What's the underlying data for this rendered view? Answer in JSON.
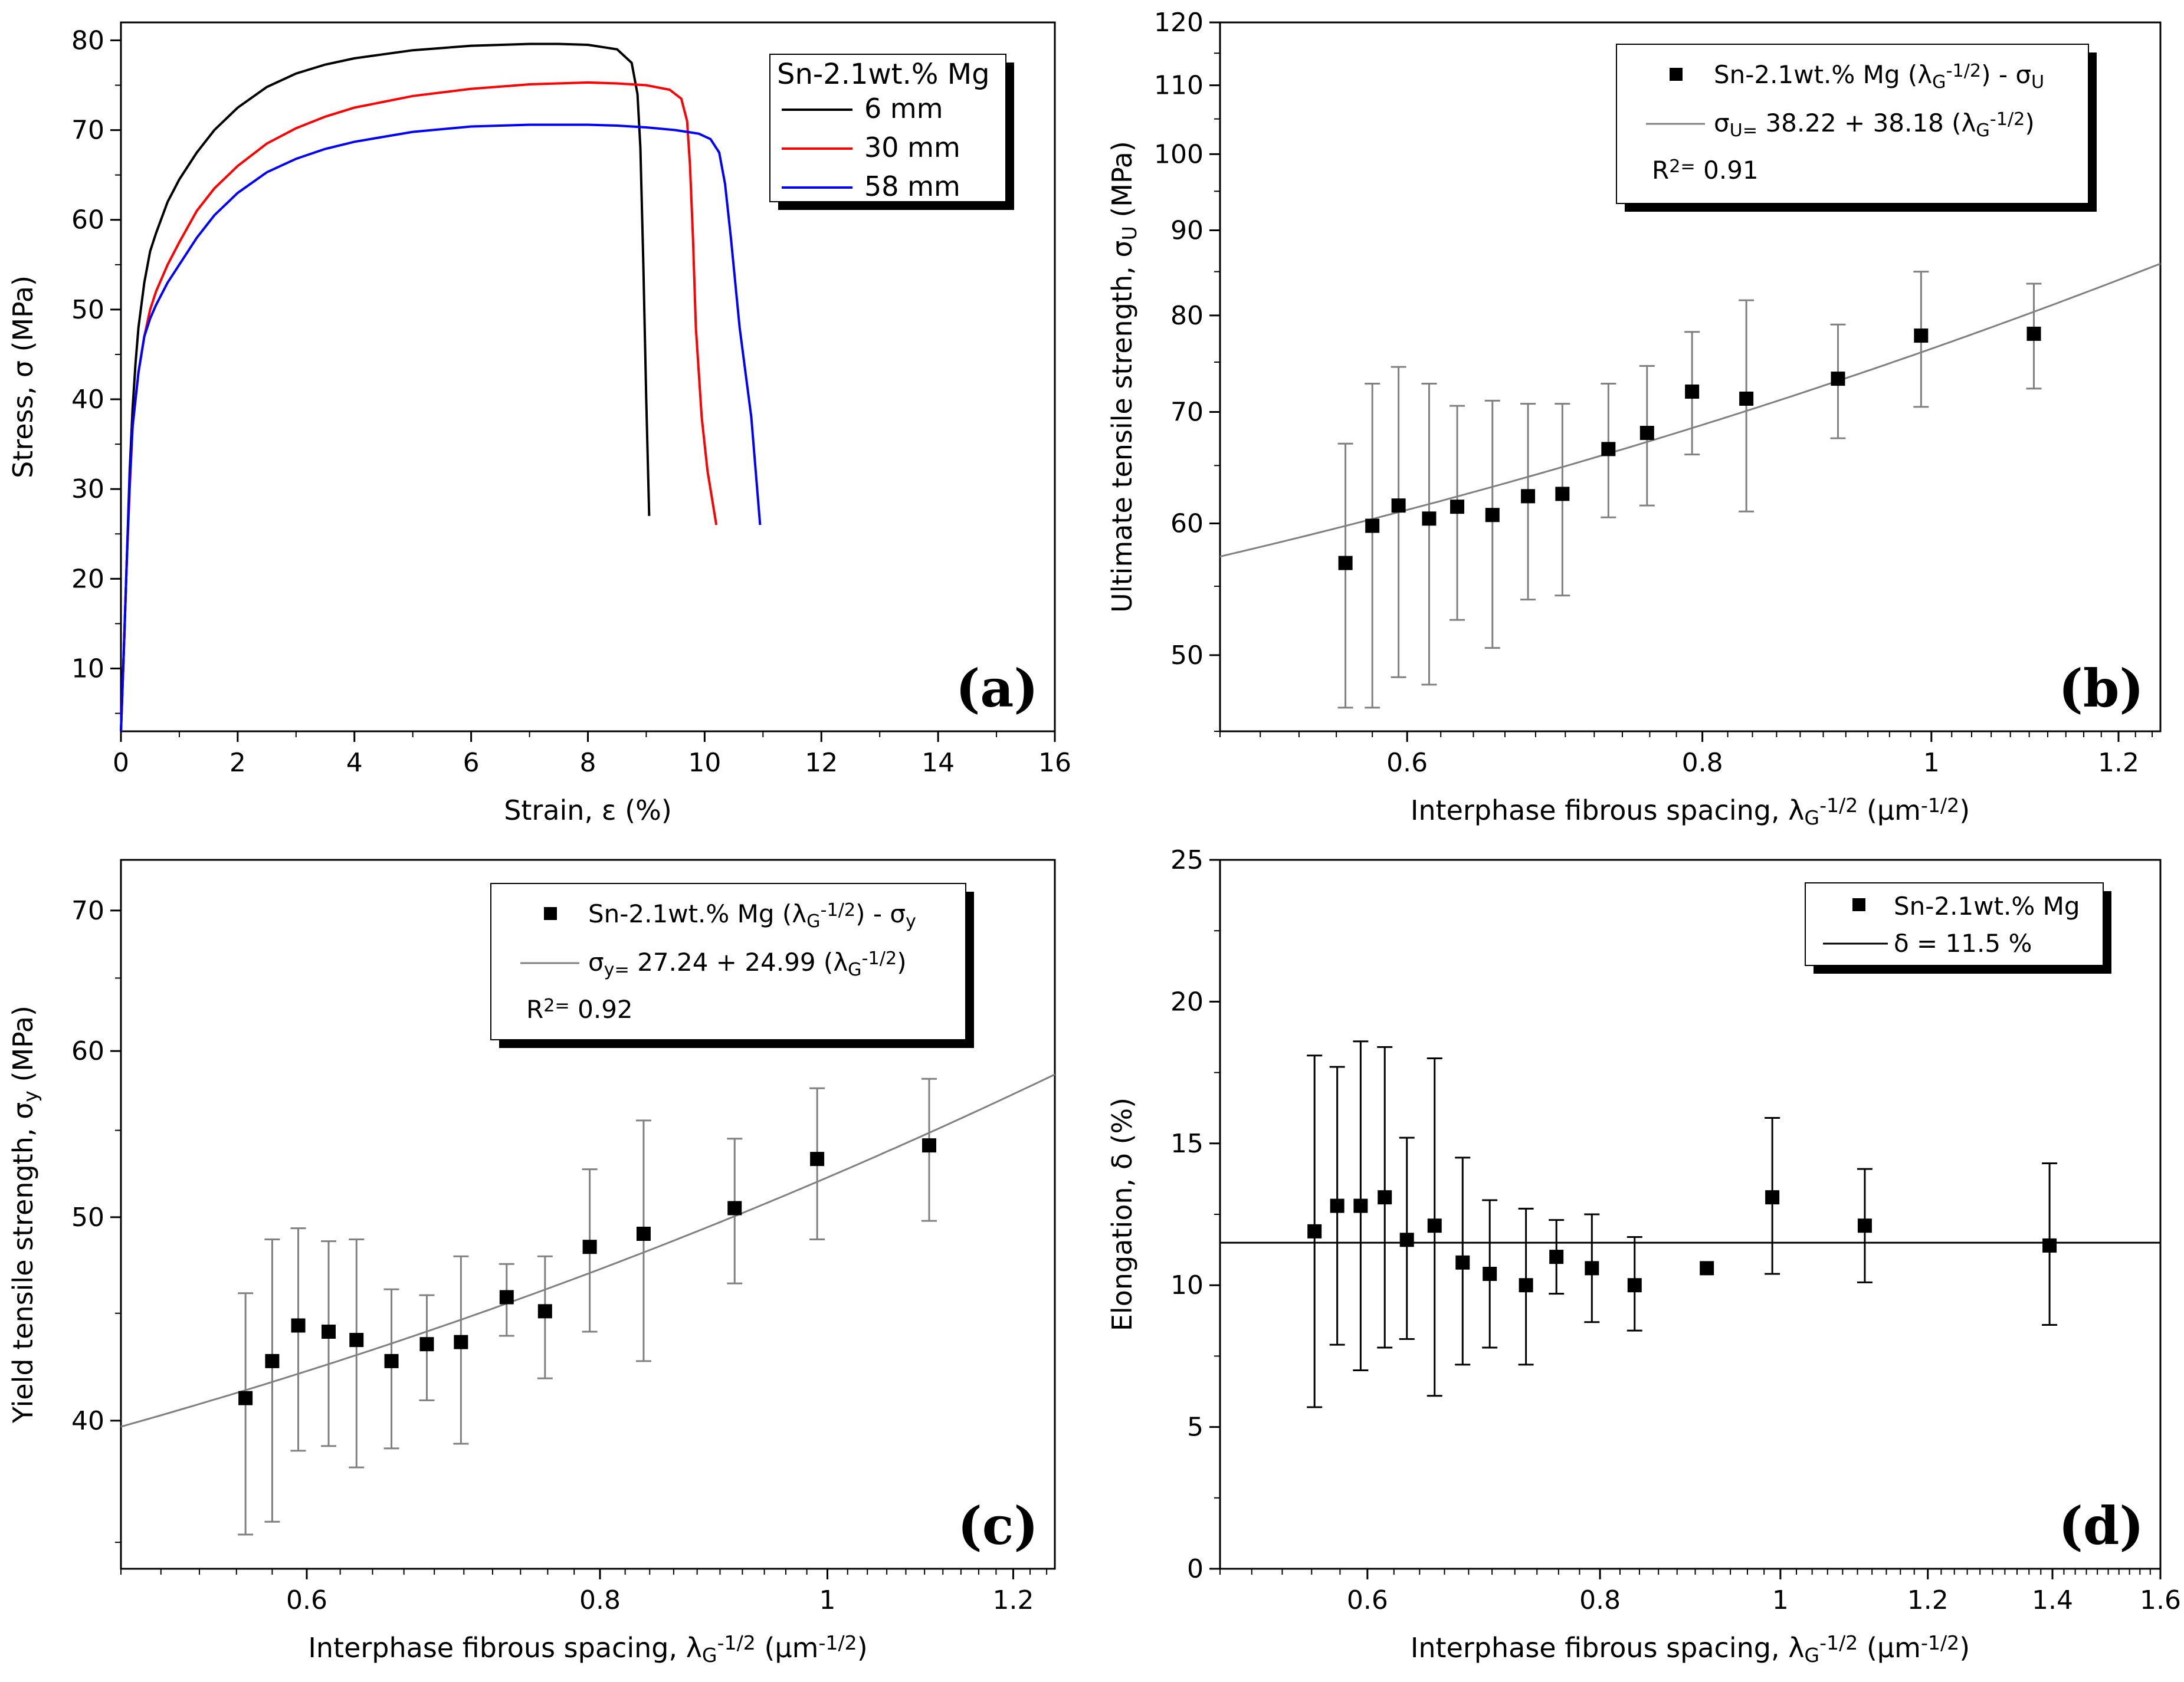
{
  "figure": {
    "colors": {
      "axis": "#000000",
      "fit": "#808080",
      "errorbar": "#808080",
      "marker": "#000000"
    }
  },
  "chart_data": [
    {
      "id": "a",
      "type": "line",
      "panel_label": "(a)",
      "title": "",
      "xlabel": "Strain, ε (%)",
      "ylabel": "Stress, σ (MPa)",
      "xlim": [
        0,
        16
      ],
      "ylim": [
        3,
        82
      ],
      "xticks": [
        0,
        2,
        4,
        6,
        8,
        10,
        12,
        14,
        16
      ],
      "yticks": [
        10,
        20,
        30,
        40,
        50,
        60,
        70,
        80
      ],
      "legend": {
        "title": "Sn-2.1wt.% Mg",
        "position": "top-right"
      },
      "series": [
        {
          "name": "6 mm",
          "color": "#000000",
          "x": [
            0.0,
            0.05,
            0.1,
            0.15,
            0.2,
            0.25,
            0.3,
            0.4,
            0.5,
            0.6,
            0.8,
            1.0,
            1.3,
            1.6,
            2.0,
            2.5,
            3.0,
            3.5,
            4.0,
            5.0,
            6.0,
            7.0,
            7.5,
            8.0,
            8.5,
            8.75,
            8.85,
            8.9,
            8.95,
            9.0,
            9.05
          ],
          "y": [
            3,
            12,
            22,
            32,
            39,
            44,
            48,
            53,
            56.5,
            58.5,
            62,
            64.5,
            67.5,
            70,
            72.5,
            74.8,
            76.3,
            77.3,
            78,
            78.9,
            79.4,
            79.6,
            79.6,
            79.5,
            79,
            77.5,
            74,
            68,
            55,
            40,
            27
          ]
        },
        {
          "name": "30 mm",
          "color": "#ff0000",
          "x": [
            0.0,
            0.05,
            0.1,
            0.15,
            0.2,
            0.3,
            0.4,
            0.5,
            0.6,
            0.8,
            1.0,
            1.3,
            1.6,
            2.0,
            2.5,
            3.0,
            3.5,
            4.0,
            5.0,
            6.0,
            7.0,
            8.0,
            8.5,
            9.0,
            9.4,
            9.6,
            9.7,
            9.75,
            9.8,
            9.85,
            9.95,
            10.05,
            10.2
          ],
          "y": [
            3,
            12,
            22,
            30,
            37,
            43,
            47,
            50,
            52,
            55,
            57.5,
            61,
            63.5,
            66,
            68.5,
            70.2,
            71.5,
            72.5,
            73.8,
            74.6,
            75.1,
            75.3,
            75.2,
            75,
            74.5,
            73.5,
            71,
            66,
            58,
            48,
            38,
            32,
            26
          ]
        },
        {
          "name": "58 mm",
          "color": "#0000ff",
          "x": [
            0.0,
            0.05,
            0.1,
            0.15,
            0.2,
            0.3,
            0.4,
            0.5,
            0.6,
            0.8,
            1.0,
            1.3,
            1.6,
            2.0,
            2.5,
            3.0,
            3.5,
            4.0,
            5.0,
            6.0,
            7.0,
            8.0,
            8.5,
            9.0,
            9.5,
            9.9,
            10.1,
            10.25,
            10.35,
            10.45,
            10.6,
            10.8,
            10.95
          ],
          "y": [
            3,
            12,
            22,
            31,
            37,
            43,
            47,
            49,
            50.5,
            53,
            55,
            58,
            60.5,
            63,
            65.3,
            66.8,
            67.9,
            68.7,
            69.8,
            70.4,
            70.6,
            70.6,
            70.5,
            70.3,
            70,
            69.6,
            69,
            67.5,
            64,
            58,
            48,
            38,
            26
          ]
        }
      ]
    },
    {
      "id": "b",
      "type": "scatter",
      "panel_label": "(b)",
      "xlabel": "Interphase fibrous spacing, λ_G^-1/2 (μm^-1/2)",
      "ylabel": "Ultimate tensile strength, σ_U (MPa)",
      "xscale": "log",
      "yscale": "log",
      "xlim": [
        0.5,
        1.25
      ],
      "ylim": [
        45,
        120
      ],
      "xticks": [
        0.6,
        0.8,
        1,
        1.2
      ],
      "xtick_labels": [
        "0.6",
        "0.8",
        "1",
        "1.2"
      ],
      "yticks": [
        50,
        60,
        70,
        80,
        90,
        100,
        110,
        120
      ],
      "legend": {
        "position": "top-right",
        "series_label": "Sn-2.1wt.% Mg (λ_G^-1/2) - σ_U",
        "fit_label": "σ_U= 38.22 + 38.18 (λ_G^-1/2)",
        "r2_label": "R^2= 0.91"
      },
      "fit": {
        "a": 38.22,
        "b": 38.18
      },
      "series": [
        {
          "name": "Sn-2.1wt.% Mg",
          "x": [
            0.565,
            0.58,
            0.595,
            0.613,
            0.63,
            0.652,
            0.675,
            0.698,
            0.73,
            0.758,
            0.792,
            0.835,
            0.913,
            0.99,
            1.105
          ],
          "y": [
            56.8,
            59.8,
            61.5,
            60.4,
            61.4,
            60.7,
            62.3,
            62.5,
            66.5,
            68.0,
            72.0,
            71.3,
            73.3,
            77.8,
            78.0
          ],
          "err_low": [
            46.5,
            46.5,
            48.5,
            48.0,
            52.5,
            50.5,
            54.0,
            54.3,
            60.5,
            61.5,
            66.0,
            61.0,
            67.5,
            70.5,
            72.3
          ],
          "err_high": [
            67.0,
            72.8,
            74.5,
            72.8,
            70.6,
            71.1,
            70.8,
            70.8,
            72.8,
            74.6,
            78.2,
            81.7,
            79.0,
            85.0,
            83.6
          ]
        }
      ]
    },
    {
      "id": "c",
      "type": "scatter",
      "panel_label": "(c)",
      "xlabel": "Interphase fibrous spacing, λ_G^-1/2 (μm^-1/2)",
      "ylabel": "Yield tensile strength, σ_y (MPa)",
      "xscale": "log",
      "yscale": "log",
      "xlim": [
        0.5,
        1.25
      ],
      "ylim": [
        34,
        74
      ],
      "xticks": [
        0.6,
        0.8,
        1,
        1.2
      ],
      "xtick_labels": [
        "0.6",
        "0.8",
        "1",
        "1.2"
      ],
      "yticks": [
        40,
        50,
        60,
        70
      ],
      "legend": {
        "position": "top-right",
        "series_label": "Sn-2.1wt.% Mg (λ_G^-1/2) - σ_y",
        "fit_label": "σ_y= 27.24 + 24.99 (λ_G^-1/2)",
        "r2_label": "R^2= 0.92"
      },
      "fit": {
        "a": 27.24,
        "b": 24.99
      },
      "series": [
        {
          "name": "Sn-2.1wt.% Mg",
          "x": [
            0.565,
            0.58,
            0.595,
            0.613,
            0.63,
            0.652,
            0.675,
            0.698,
            0.73,
            0.758,
            0.792,
            0.835,
            0.913,
            0.99,
            1.105
          ],
          "y": [
            41.0,
            42.7,
            44.4,
            44.1,
            43.7,
            42.7,
            43.5,
            43.6,
            45.8,
            45.1,
            48.4,
            49.1,
            50.5,
            53.3,
            54.1
          ],
          "err_low": [
            35.3,
            35.8,
            38.7,
            38.9,
            38.0,
            38.8,
            40.9,
            39.0,
            43.9,
            41.9,
            44.1,
            42.7,
            46.5,
            48.8,
            49.8
          ],
          "err_high": [
            46.0,
            48.8,
            49.4,
            48.7,
            48.8,
            46.2,
            45.9,
            47.9,
            47.5,
            47.9,
            52.7,
            55.6,
            54.5,
            57.6,
            58.2
          ]
        }
      ]
    },
    {
      "id": "d",
      "type": "scatter",
      "panel_label": "(d)",
      "xlabel": "Interphase fibrous spacing, λ_G^-1/2 (μm^-1/2)",
      "ylabel": "Elongation, δ (%)",
      "xscale": "log",
      "yscale": "linear",
      "xlim": [
        0.5,
        1.6
      ],
      "ylim": [
        0,
        25
      ],
      "xticks": [
        0.6,
        0.8,
        1,
        1.2,
        1.4,
        1.6
      ],
      "xtick_labels": [
        "0.6",
        "0.8",
        "1",
        "1.2",
        "1.4",
        "1.6"
      ],
      "yticks": [
        0,
        5,
        10,
        15,
        20,
        25
      ],
      "legend": {
        "position": "top-right",
        "series_label": "Sn-2.1wt.% Mg",
        "fit_label": "δ = 11.5 %"
      },
      "hline": 11.5,
      "series": [
        {
          "name": "Sn-2.1wt.% Mg",
          "x": [
            0.562,
            0.578,
            0.595,
            0.613,
            0.63,
            0.652,
            0.675,
            0.698,
            0.73,
            0.758,
            0.792,
            0.835,
            0.913,
            0.99,
            1.11,
            1.395
          ],
          "y": [
            11.9,
            12.8,
            12.8,
            13.1,
            11.6,
            12.1,
            10.8,
            10.4,
            10.0,
            11.0,
            10.6,
            10.0,
            10.6,
            13.1,
            12.1,
            11.4
          ],
          "err_low": [
            5.7,
            7.9,
            7.0,
            7.8,
            8.1,
            6.1,
            7.2,
            7.8,
            7.2,
            9.7,
            8.7,
            8.4,
            10.6,
            10.4,
            10.1,
            8.6
          ],
          "err_high": [
            18.1,
            17.7,
            18.6,
            18.4,
            15.2,
            18.0,
            14.5,
            13.0,
            12.7,
            12.3,
            12.5,
            11.7,
            10.6,
            15.9,
            14.1,
            14.3
          ]
        }
      ]
    }
  ]
}
